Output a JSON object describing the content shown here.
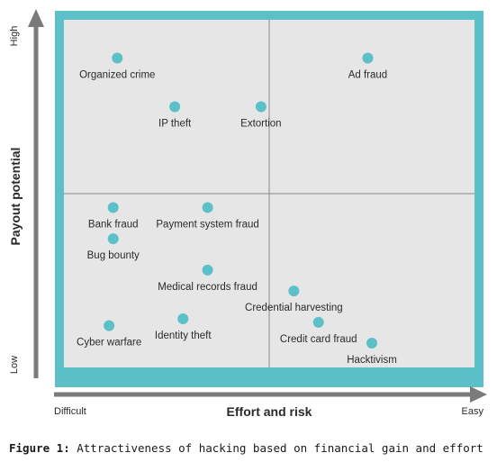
{
  "chart_data": {
    "type": "scatter",
    "title": "",
    "xlabel": "Effort and risk",
    "ylabel": "Payout potential",
    "x_tick_labels": {
      "low": "Difficult",
      "high": "Easy"
    },
    "y_tick_labels": {
      "low": "Low",
      "high": "High"
    },
    "xlim": [
      0,
      10
    ],
    "ylim": [
      0,
      10
    ],
    "quadrant_dividers": {
      "x": 5,
      "y": 5
    },
    "grid": false,
    "colors": {
      "frame": "#5bc0c8",
      "plot_bg": "#e6e6e6",
      "point": "#5bc0c8",
      "divider": "#888888",
      "axis": "#7a7a7a"
    },
    "points": [
      {
        "label": "Organized crime",
        "x": 1.3,
        "y": 8.9
      },
      {
        "label": "Ad fraud",
        "x": 7.4,
        "y": 8.9
      },
      {
        "label": "IP theft",
        "x": 2.7,
        "y": 7.5
      },
      {
        "label": "Extortion",
        "x": 4.8,
        "y": 7.5
      },
      {
        "label": "Bank fraud",
        "x": 1.2,
        "y": 4.6
      },
      {
        "label": "Payment system fraud",
        "x": 3.5,
        "y": 4.6
      },
      {
        "label": "Bug bounty",
        "x": 1.2,
        "y": 3.7
      },
      {
        "label": "Medical records fraud",
        "x": 3.5,
        "y": 2.8
      },
      {
        "label": "Credential harvesting",
        "x": 5.6,
        "y": 2.2
      },
      {
        "label": "Identity theft",
        "x": 2.9,
        "y": 1.4
      },
      {
        "label": "Credit card fraud",
        "x": 6.2,
        "y": 1.3
      },
      {
        "label": "Cyber warfare",
        "x": 1.1,
        "y": 1.2
      },
      {
        "label": "Hacktivism",
        "x": 7.5,
        "y": 0.7
      }
    ]
  },
  "caption": {
    "prefix": "Figure 1:",
    "text": " Attractiveness of hacking based on financial gain and effort"
  }
}
